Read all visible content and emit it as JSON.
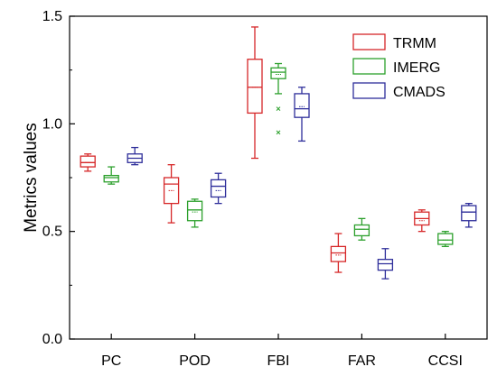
{
  "chart_data": {
    "type": "box",
    "title": "",
    "xlabel": "",
    "ylabel": "Metrics values",
    "ylim": [
      0.0,
      1.5
    ],
    "yticks": [
      "0.0",
      "0.5",
      "1.0",
      "1.5"
    ],
    "categories": [
      "PC",
      "POD",
      "FBI",
      "FAR",
      "CCSI"
    ],
    "legend_position": "top-right",
    "grid": false,
    "series": [
      {
        "name": "TRMM",
        "color": "#d62728",
        "boxes": [
          {
            "min": 0.78,
            "q1": 0.8,
            "median": 0.82,
            "mean": 0.82,
            "q3": 0.85,
            "max": 0.86,
            "outliers": []
          },
          {
            "min": 0.54,
            "q1": 0.63,
            "median": 0.72,
            "mean": 0.69,
            "q3": 0.75,
            "max": 0.81,
            "outliers": []
          },
          {
            "min": 0.84,
            "q1": 1.05,
            "median": 1.17,
            "mean": 1.17,
            "q3": 1.3,
            "max": 1.45,
            "outliers": []
          },
          {
            "min": 0.31,
            "q1": 0.36,
            "median": 0.4,
            "mean": 0.39,
            "q3": 0.43,
            "max": 0.49,
            "outliers": []
          },
          {
            "min": 0.5,
            "q1": 0.53,
            "median": 0.56,
            "mean": 0.55,
            "q3": 0.59,
            "max": 0.6,
            "outliers": []
          }
        ]
      },
      {
        "name": "IMERG",
        "color": "#2ca02c",
        "boxes": [
          {
            "min": 0.72,
            "q1": 0.73,
            "median": 0.75,
            "mean": 0.75,
            "q3": 0.76,
            "max": 0.8,
            "outliers": []
          },
          {
            "min": 0.52,
            "q1": 0.55,
            "median": 0.6,
            "mean": 0.59,
            "q3": 0.64,
            "max": 0.65,
            "outliers": []
          },
          {
            "min": 1.14,
            "q1": 1.21,
            "median": 1.24,
            "mean": 1.23,
            "q3": 1.26,
            "max": 1.28,
            "outliers": [
              1.07,
              0.96
            ]
          },
          {
            "min": 0.46,
            "q1": 0.48,
            "median": 0.51,
            "mean": 0.51,
            "q3": 0.53,
            "max": 0.56,
            "outliers": []
          },
          {
            "min": 0.43,
            "q1": 0.44,
            "median": 0.46,
            "mean": 0.46,
            "q3": 0.49,
            "max": 0.5,
            "outliers": []
          }
        ]
      },
      {
        "name": "CMADS",
        "color": "#2e2e9a",
        "boxes": [
          {
            "min": 0.81,
            "q1": 0.82,
            "median": 0.84,
            "mean": 0.84,
            "q3": 0.86,
            "max": 0.89,
            "outliers": []
          },
          {
            "min": 0.63,
            "q1": 0.66,
            "median": 0.71,
            "mean": 0.69,
            "q3": 0.74,
            "max": 0.77,
            "outliers": []
          },
          {
            "min": 0.92,
            "q1": 1.03,
            "median": 1.07,
            "mean": 1.08,
            "q3": 1.14,
            "max": 1.17,
            "outliers": []
          },
          {
            "min": 0.28,
            "q1": 0.32,
            "median": 0.35,
            "mean": 0.35,
            "q3": 0.37,
            "max": 0.42,
            "outliers": []
          },
          {
            "min": 0.52,
            "q1": 0.55,
            "median": 0.59,
            "mean": 0.59,
            "q3": 0.62,
            "max": 0.63,
            "outliers": []
          }
        ]
      }
    ]
  }
}
